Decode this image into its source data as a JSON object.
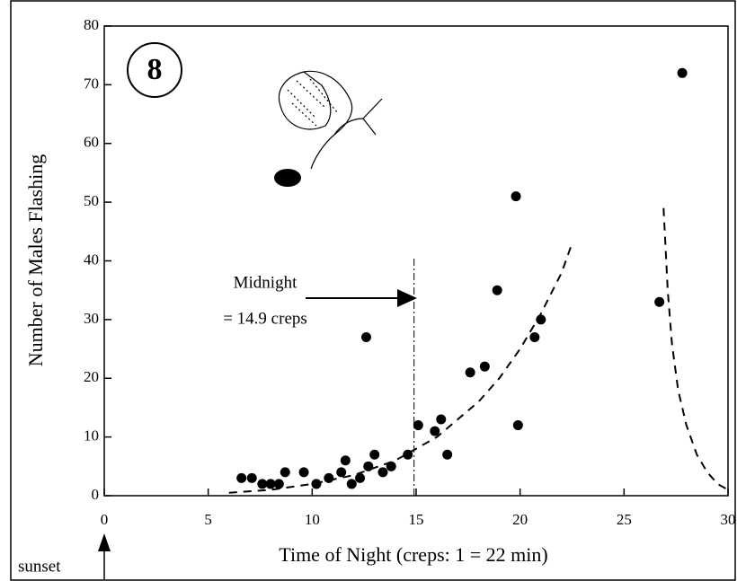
{
  "chart_data": {
    "type": "scatter",
    "x_label": "Time of Night (creps: 1 = 22 min)",
    "y_label": "Number of Males Flashing",
    "annotations": {
      "panel": "8",
      "midnight": "Midnight",
      "midnight_value": "= 14.9 creps",
      "sunset": "sunset"
    },
    "x": [
      6.6,
      7.1,
      7.6,
      8.0,
      8.4,
      8.7,
      9.6,
      10.2,
      10.8,
      11.4,
      11.6,
      11.9,
      12.3,
      12.6,
      12.7,
      13.0,
      13.4,
      13.8,
      14.6,
      15.1,
      15.9,
      16.2,
      16.5,
      17.6,
      18.3,
      18.9,
      19.8,
      19.9,
      20.7,
      21.0,
      26.7,
      27.8
    ],
    "values": [
      3,
      3,
      2,
      2,
      2,
      4,
      4,
      2,
      3,
      4,
      6,
      2,
      3,
      27,
      5,
      7,
      4,
      5,
      7,
      12,
      11,
      13,
      7,
      21,
      22,
      35,
      51,
      12,
      27,
      30,
      33,
      72
    ],
    "color": "#000000",
    "fit_curves": [
      {
        "x": [
          6,
          8,
          10,
          12,
          14,
          15,
          16,
          17,
          18,
          19,
          20,
          21,
          22,
          22.5
        ],
        "values": [
          0.5,
          1,
          2,
          3.5,
          6,
          8,
          10,
          13,
          16,
          20,
          25,
          31,
          38,
          43
        ]
      },
      {
        "x": [
          26.9,
          27.0,
          27.1,
          27.3,
          27.6,
          28,
          28.5,
          29,
          29.5,
          30
        ],
        "values": [
          49,
          42,
          35,
          26,
          18,
          12,
          7,
          4,
          2,
          1
        ]
      }
    ],
    "line_style": "dashed",
    "reference_lines": [
      {
        "x": 14.9
      }
    ],
    "xlim": [
      0,
      30
    ],
    "xticks": [
      0,
      5,
      10,
      15,
      20,
      25,
      30
    ],
    "ylim": [
      0,
      80
    ],
    "yticks": [
      0,
      10,
      20,
      30,
      40,
      50,
      60,
      70,
      80
    ],
    "grid": false
  }
}
